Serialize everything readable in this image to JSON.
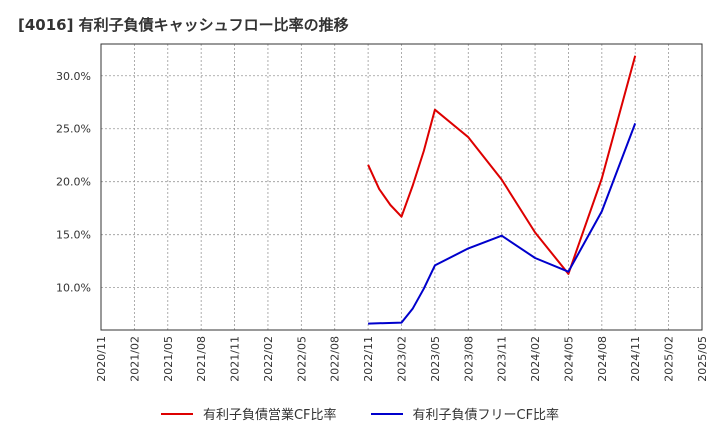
{
  "chart_data": {
    "type": "line",
    "title": "[4016]  有利子負債キャッシュフロー比率の推移",
    "xlabel": "",
    "ylabel": "",
    "x_tick_labels": [
      "2020/11",
      "2021/02",
      "2021/05",
      "2021/08",
      "2021/11",
      "2022/02",
      "2022/05",
      "2022/08",
      "2022/11",
      "2023/02",
      "2023/05",
      "2023/08",
      "2023/11",
      "2024/02",
      "2024/05",
      "2024/08",
      "2024/11",
      "2025/02",
      "2025/05"
    ],
    "y_tick_labels": [
      "10.0%",
      "15.0%",
      "20.0%",
      "25.0%",
      "30.0%"
    ],
    "y_ticks": [
      10,
      15,
      20,
      25,
      30
    ],
    "ylim": [
      6,
      33
    ],
    "xlim": [
      0,
      18
    ],
    "grid": true,
    "legend_position": "bottom",
    "series": [
      {
        "name": "有利子負債営業CF比率",
        "color": "#dd0000",
        "points": [
          {
            "x": "2022/11",
            "y": 21.6
          },
          {
            "x": "2022/12",
            "y": 19.3
          },
          {
            "x": "2023/01",
            "y": 17.8
          },
          {
            "x": "2023/02",
            "y": 16.7
          },
          {
            "x": "2023/03",
            "y": 19.6
          },
          {
            "x": "2023/04",
            "y": 22.9
          },
          {
            "x": "2023/05",
            "y": 26.8
          },
          {
            "x": "2023/08",
            "y": 24.2
          },
          {
            "x": "2023/11",
            "y": 20.2
          },
          {
            "x": "2024/02",
            "y": 15.2
          },
          {
            "x": "2024/05",
            "y": 11.3
          },
          {
            "x": "2024/08",
            "y": 20.3
          },
          {
            "x": "2024/11",
            "y": 31.9
          }
        ]
      },
      {
        "name": "有利子負債フリーCF比率",
        "color": "#0000cc",
        "points": [
          {
            "x": "2022/11",
            "y": 6.6
          },
          {
            "x": "2023/02",
            "y": 6.7
          },
          {
            "x": "2023/03",
            "y": 8.0
          },
          {
            "x": "2023/04",
            "y": 9.9
          },
          {
            "x": "2023/05",
            "y": 12.1
          },
          {
            "x": "2023/08",
            "y": 13.7
          },
          {
            "x": "2023/11",
            "y": 14.9
          },
          {
            "x": "2024/02",
            "y": 12.8
          },
          {
            "x": "2024/05",
            "y": 11.5
          },
          {
            "x": "2024/08",
            "y": 17.2
          },
          {
            "x": "2024/11",
            "y": 25.5
          }
        ]
      }
    ]
  }
}
